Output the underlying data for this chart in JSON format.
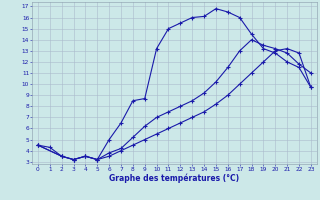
{
  "title": "Graphe des températures (°C)",
  "bg_color": "#cce8e8",
  "grid_color": "#aabbcc",
  "line_color": "#1a1aaa",
  "xlim": [
    -0.5,
    23.5
  ],
  "ylim": [
    2.8,
    17.4
  ],
  "xticks": [
    0,
    1,
    2,
    3,
    4,
    5,
    6,
    7,
    8,
    9,
    10,
    11,
    12,
    13,
    14,
    15,
    16,
    17,
    18,
    19,
    20,
    21,
    22,
    23
  ],
  "yticks": [
    3,
    4,
    5,
    6,
    7,
    8,
    9,
    10,
    11,
    12,
    13,
    14,
    15,
    16,
    17
  ],
  "line1_x": [
    0,
    1,
    2,
    3,
    4,
    5,
    6,
    7,
    8,
    9,
    10,
    11,
    12,
    13,
    14,
    15,
    16,
    17,
    18,
    19,
    20,
    21,
    22,
    23
  ],
  "line1_y": [
    4.5,
    4.3,
    3.5,
    3.2,
    3.5,
    3.2,
    5.0,
    6.5,
    8.5,
    8.7,
    13.2,
    15.0,
    15.5,
    16.0,
    16.1,
    16.8,
    16.5,
    16.0,
    14.5,
    13.2,
    12.8,
    12.0,
    11.5,
    9.7
  ],
  "line2_x": [
    0,
    2,
    3,
    4,
    5,
    6,
    7,
    8,
    9,
    10,
    11,
    12,
    13,
    14,
    15,
    16,
    17,
    18,
    19,
    20,
    21,
    22,
    23
  ],
  "line2_y": [
    4.5,
    3.5,
    3.2,
    3.5,
    3.2,
    3.8,
    4.2,
    5.2,
    6.2,
    7.0,
    7.5,
    8.0,
    8.5,
    9.2,
    10.2,
    11.5,
    13.0,
    14.0,
    13.5,
    13.2,
    12.8,
    11.8,
    11.0
  ],
  "line3_x": [
    0,
    2,
    3,
    4,
    5,
    6,
    7,
    8,
    9,
    10,
    11,
    12,
    13,
    14,
    15,
    16,
    17,
    18,
    19,
    20,
    21,
    22,
    23
  ],
  "line3_y": [
    4.5,
    3.5,
    3.2,
    3.5,
    3.2,
    3.5,
    4.0,
    4.5,
    5.0,
    5.5,
    6.0,
    6.5,
    7.0,
    7.5,
    8.2,
    9.0,
    10.0,
    11.0,
    12.0,
    13.0,
    13.2,
    12.8,
    9.7
  ]
}
